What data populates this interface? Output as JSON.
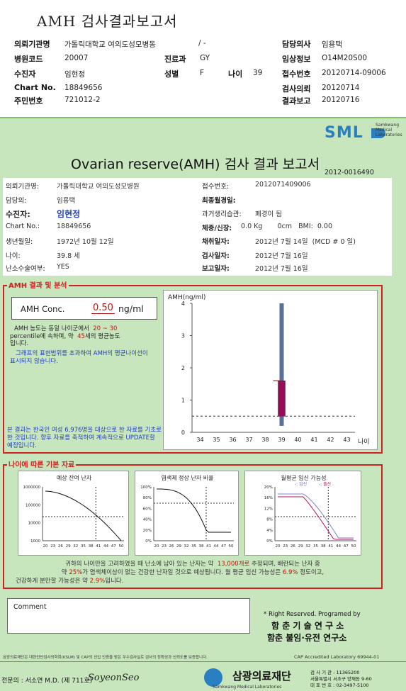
{
  "header": {
    "title": "AMH 검사결과보고서",
    "rows": [
      {
        "k1": "의뢰기관명",
        "v1": "가톨릭대학교 여의도성모병동",
        "v1b": "/ -",
        "k3": "담당의사",
        "v3": "임용택"
      },
      {
        "k1": "병원코드",
        "v1": "20007",
        "k2": "진료과",
        "v2": "GY",
        "k3": "임상정보",
        "v3": "O14M20S00"
      },
      {
        "k1": "수진자",
        "v1": "임현정",
        "k2": "성별",
        "v2": "F",
        "k2b": "나이",
        "v2b": "39",
        "k3": "접수번호",
        "v3": "20120714-09006"
      },
      {
        "k1": "Chart No.",
        "v1": "18849656",
        "k3": "검사의뢰",
        "v3": "20120714"
      },
      {
        "k1": "주민번호",
        "v1": "721012-2",
        "k3": "결과보고",
        "v3": "20120716"
      }
    ]
  },
  "logo": {
    "mark": "SML",
    "line1": "Samkwang",
    "line2": "Medical",
    "line3": "Laboratories"
  },
  "report": {
    "title": "Ovarian reserve(AMH) 검사 결과 보고서",
    "doc_no": "2012-0016490",
    "left_fields": [
      {
        "label": "의뢰기관명:",
        "value": "가톨릭대학교 여의도성모병원"
      },
      {
        "label": "담당의:",
        "value": "임용택"
      },
      {
        "label": "수진자:",
        "value": "임현정"
      },
      {
        "label": "Chart No.:",
        "value": "18849656"
      },
      {
        "label": "생년월일:",
        "value": "1972년 10월 12일"
      },
      {
        "label": "나이:",
        "value": "39.8 세"
      },
      {
        "label": "난소수술여부:",
        "value": "YES"
      }
    ],
    "right_fields": [
      {
        "label": "접수번호:",
        "value": "2012071409006"
      },
      {
        "label": "최종월경일:",
        "value": ""
      },
      {
        "label": "과거생리습관:",
        "value": "폐경이 됨"
      },
      {
        "label": "체중/신장:",
        "value": "0.0 Kg       0cm   BMI:  0.00"
      },
      {
        "label": "채취일자:",
        "value": "2012년 7월 14일  (MCD # 0 일)"
      },
      {
        "label": "검사일자:",
        "value": "2012년 7월 16일"
      },
      {
        "label": "보고일자:",
        "value": "2012년 7월 16일"
      }
    ]
  },
  "amh": {
    "section_title": "AMH 결과 및 분석",
    "conc_label": "AMH Conc.",
    "conc_value": "0.50",
    "conc_unit": "ng/ml",
    "text1a": "AMH 농도는 동일 나이군에서",
    "text1b": "20 ~ 30",
    "text1c": "percentile에 속하며, 약",
    "text1d": "45",
    "text1e": "세의 평균농도",
    "text1f": "입니다.",
    "text2": "그래프의 표현범위를 초과하여 AMH의 평균나이선이 표시되지 않습니다.",
    "text3": "본 결과는 한국인 여성 6,976명을 대상으로 한 자료를 기초로 한 것입니다. 향후 자료를 축적하여 계속적으로 UPDATE할 예정입니다."
  },
  "chart_data": [
    {
      "type": "bar",
      "ylabel": "AMH(ng/ml)",
      "xlabel": "나이",
      "categories": [
        "34",
        "35",
        "36",
        "37",
        "38",
        "39",
        "40",
        "41",
        "42",
        "43"
      ],
      "ylim": [
        0,
        4
      ],
      "yticks": [
        "0",
        "1",
        "2",
        "3",
        "4"
      ],
      "series": [
        {
          "name": "range",
          "x": "39",
          "low": 0.2,
          "high": 4.0
        },
        {
          "name": "patient",
          "x": "39",
          "low": 0.5,
          "high": 1.6
        }
      ],
      "reference_line": 0.5
    },
    {
      "type": "line",
      "title": "예상 잔여 난자",
      "yticks": [
        "1000000",
        "100000",
        "10000",
        "1000"
      ],
      "xticks": [
        "20",
        "23",
        "26",
        "29",
        "32",
        "35",
        "38",
        "41",
        "44",
        "47",
        "50"
      ]
    },
    {
      "type": "line",
      "title": "염색체 정상 난자 비율",
      "yticks": [
        "100%",
        "80%",
        "60%",
        "40%",
        "20%",
        "0%"
      ],
      "xticks": [
        "20",
        "23",
        "26",
        "29",
        "32",
        "35",
        "38",
        "41",
        "44",
        "47",
        "50"
      ]
    },
    {
      "type": "line",
      "title": "월평균 임신 가능성",
      "legend": [
        "임신",
        "출산"
      ],
      "yticks": [
        "20%",
        "16%",
        "12%",
        "8%",
        "4%",
        "0%"
      ],
      "xticks": [
        "20",
        "23",
        "26",
        "29",
        "32",
        "35",
        "38",
        "41",
        "44",
        "47",
        "50"
      ]
    }
  ],
  "age": {
    "section_title": "나이에 따른 기본 자료",
    "s1": "귀하의 나이만을 고려하였을 때 난소에 남아 있는 난자는 약",
    "s1v": "13,000개로",
    "s1b": "추정되며, 배란되는 난자 중",
    "s2a": "약",
    "s2v": "25%",
    "s2b": "가 염색체이상이 없는 건강한 난자일 것으로 예상됩니다. 월 평균 임신 가능성은",
    "s2c": "6.9%",
    "s2d": "정도이고,",
    "s3a": "건강하게 분만할 가능성은 약",
    "s3v": "2.9%",
    "s3b": "입니다."
  },
  "comment": {
    "label": "Comment"
  },
  "footer": {
    "rights": "* Right Reserved. Programed by",
    "org1": "함 춘 기 술 연 구 소",
    "org2": "함춘 불임·유전 연구소",
    "cert": "삼광의료재단은 대한진단검사의학회(KSLM) 및 CAP의 신입 인증을 받은 우수검사실로 검사의 정확성과 신뢰도를 보증합니다.",
    "cap": "CAP Accredited Laboratory 69944-01",
    "doctor": "전문의 : 서소연 M.D. (제 711호)",
    "sign": "SoyeonSeo",
    "foundation": "삼광의료재단",
    "foundation_en": "Samkwang Medical Laboratories",
    "reg_no": "검 사 기 관 : 11365200",
    "address": "서울특별시 서초구 양재동 9-60",
    "tel": "대 표 번 호 : 02-3497-5100"
  }
}
